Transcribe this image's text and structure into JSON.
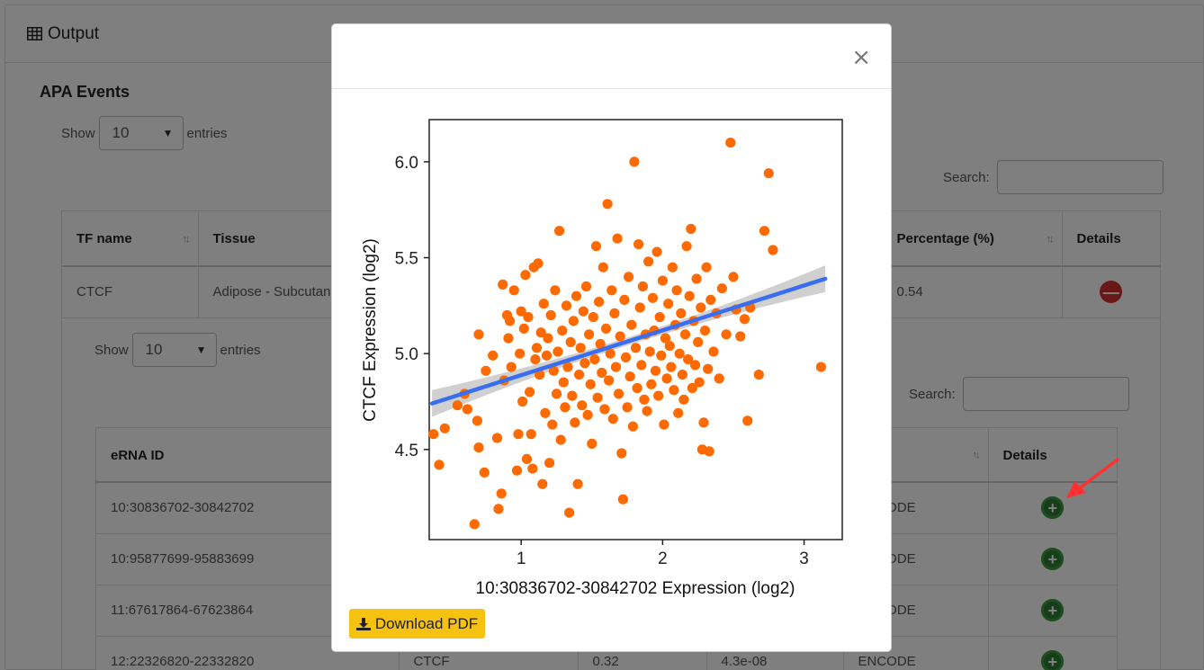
{
  "panel": {
    "title": "Output",
    "icon": "table-icon"
  },
  "apa": {
    "title": "APA Events",
    "show_label": "Show",
    "entries_value": "10",
    "entries_label": "entries",
    "search_label": "Search:",
    "headers": {
      "tf": "TF name",
      "tissue": "Tissue",
      "pct": "Percentage (%)",
      "details": "Details"
    },
    "row": {
      "tf": "CTCF",
      "tissue": "Adipose - Subcutaneous",
      "pct": "0.54"
    }
  },
  "erna": {
    "show_label": "Show",
    "entries_value": "10",
    "entries_label": "entries",
    "search_label": "Search:",
    "headers": {
      "id": "eRNA ID",
      "details": "Details"
    },
    "rows": [
      {
        "id": "10:30836702-30842702",
        "tf": "",
        "r": "",
        "p": "",
        "source": "ENCODE"
      },
      {
        "id": "10:95877699-95883699",
        "tf": "",
        "r": "",
        "p": "",
        "source": "ENCODE"
      },
      {
        "id": "11:67617864-67623864",
        "tf": "",
        "r": "",
        "p": "",
        "source": "ENCODE"
      },
      {
        "id": "12:22326820-22332820",
        "tf": "CTCF",
        "r": "0.32",
        "p": "4.3e-08",
        "source": "ENCODE"
      }
    ]
  },
  "modal": {
    "close_icon": "close-icon",
    "download_label": "Download PDF",
    "download_icon": "download-icon"
  },
  "chart_data": {
    "type": "scatter",
    "xlabel": "10:30836702-30842702  Expression (log2)",
    "ylabel": "CTCF  Expression (log2)",
    "xlim": [
      0.35,
      3.27
    ],
    "ylim": [
      4.03,
      6.22
    ],
    "xticks": [
      "1",
      "2",
      "3"
    ],
    "yticks": [
      "4.5",
      "5.0",
      "5.5",
      "6.0"
    ],
    "grid": false,
    "point_color": "#ff6a00",
    "fit_line_color": "#3a6ef0",
    "ci_color": "#c8c8c8",
    "fit": {
      "x": [
        0.37,
        3.15
      ],
      "y": [
        4.74,
        5.39
      ],
      "ci_halfwidth_ends": 0.07,
      "ci_halfwidth_mid": 0.02
    },
    "points": [
      [
        0.38,
        4.58
      ],
      [
        0.42,
        4.42
      ],
      [
        0.46,
        4.61
      ],
      [
        0.55,
        4.73
      ],
      [
        0.6,
        4.79
      ],
      [
        0.62,
        4.71
      ],
      [
        0.67,
        4.11
      ],
      [
        0.69,
        4.65
      ],
      [
        0.7,
        4.51
      ],
      [
        0.7,
        5.1
      ],
      [
        0.74,
        4.38
      ],
      [
        0.75,
        4.91
      ],
      [
        0.8,
        4.99
      ],
      [
        0.83,
        4.56
      ],
      [
        0.84,
        4.19
      ],
      [
        0.86,
        4.27
      ],
      [
        0.87,
        5.36
      ],
      [
        0.88,
        4.86
      ],
      [
        0.9,
        5.2
      ],
      [
        0.91,
        5.08
      ],
      [
        0.92,
        5.17
      ],
      [
        0.93,
        4.93
      ],
      [
        0.95,
        5.33
      ],
      [
        0.97,
        4.39
      ],
      [
        0.98,
        4.58
      ],
      [
        0.99,
        5.0
      ],
      [
        1.0,
        5.22
      ],
      [
        1.01,
        4.75
      ],
      [
        1.02,
        5.13
      ],
      [
        1.03,
        5.41
      ],
      [
        1.04,
        4.45
      ],
      [
        1.05,
        5.19
      ],
      [
        1.06,
        4.8
      ],
      [
        1.07,
        4.58
      ],
      [
        1.08,
        4.4
      ],
      [
        1.09,
        5.45
      ],
      [
        1.1,
        4.97
      ],
      [
        1.11,
        5.03
      ],
      [
        1.12,
        5.47
      ],
      [
        1.13,
        4.89
      ],
      [
        1.14,
        5.11
      ],
      [
        1.15,
        4.32
      ],
      [
        1.16,
        5.26
      ],
      [
        1.17,
        4.69
      ],
      [
        1.18,
        4.99
      ],
      [
        1.19,
        5.08
      ],
      [
        1.2,
        4.43
      ],
      [
        1.21,
        5.2
      ],
      [
        1.22,
        4.63
      ],
      [
        1.23,
        4.91
      ],
      [
        1.24,
        5.33
      ],
      [
        1.25,
        4.79
      ],
      [
        1.26,
        5.01
      ],
      [
        1.27,
        5.64
      ],
      [
        1.28,
        4.55
      ],
      [
        1.29,
        5.12
      ],
      [
        1.3,
        4.85
      ],
      [
        1.31,
        4.72
      ],
      [
        1.32,
        5.25
      ],
      [
        1.33,
        4.93
      ],
      [
        1.34,
        4.17
      ],
      [
        1.35,
        5.06
      ],
      [
        1.36,
        4.78
      ],
      [
        1.37,
        5.17
      ],
      [
        1.38,
        4.64
      ],
      [
        1.39,
        5.3
      ],
      [
        1.4,
        4.32
      ],
      [
        1.41,
        4.89
      ],
      [
        1.42,
        5.03
      ],
      [
        1.43,
        4.73
      ],
      [
        1.44,
        5.22
      ],
      [
        1.45,
        4.95
      ],
      [
        1.46,
        5.35
      ],
      [
        1.47,
        4.68
      ],
      [
        1.48,
        5.1
      ],
      [
        1.49,
        4.84
      ],
      [
        1.5,
        4.53
      ],
      [
        1.51,
        5.19
      ],
      [
        1.52,
        4.97
      ],
      [
        1.53,
        5.56
      ],
      [
        1.54,
        4.77
      ],
      [
        1.55,
        5.27
      ],
      [
        1.56,
        5.05
      ],
      [
        1.57,
        4.9
      ],
      [
        1.58,
        5.45
      ],
      [
        1.59,
        4.71
      ],
      [
        1.6,
        5.13
      ],
      [
        1.61,
        5.78
      ],
      [
        1.62,
        4.86
      ],
      [
        1.63,
        5.0
      ],
      [
        1.64,
        5.33
      ],
      [
        1.65,
        4.66
      ],
      [
        1.66,
        5.21
      ],
      [
        1.67,
        4.93
      ],
      [
        1.68,
        5.6
      ],
      [
        1.69,
        4.79
      ],
      [
        1.7,
        5.09
      ],
      [
        1.71,
        4.48
      ],
      [
        1.72,
        4.24
      ],
      [
        1.73,
        5.28
      ],
      [
        1.74,
        4.98
      ],
      [
        1.75,
        4.72
      ],
      [
        1.76,
        5.4
      ],
      [
        1.77,
        4.88
      ],
      [
        1.78,
        5.15
      ],
      [
        1.79,
        4.62
      ],
      [
        1.8,
        6.0
      ],
      [
        1.81,
        5.03
      ],
      [
        1.82,
        4.82
      ],
      [
        1.83,
        5.57
      ],
      [
        1.84,
        5.24
      ],
      [
        1.85,
        4.94
      ],
      [
        1.86,
        5.35
      ],
      [
        1.87,
        4.76
      ],
      [
        1.88,
        5.1
      ],
      [
        1.89,
        4.7
      ],
      [
        1.9,
        5.48
      ],
      [
        1.91,
        5.01
      ],
      [
        1.92,
        4.84
      ],
      [
        1.93,
        5.29
      ],
      [
        1.94,
        5.12
      ],
      [
        1.95,
        4.91
      ],
      [
        1.96,
        5.53
      ],
      [
        1.97,
        4.78
      ],
      [
        1.98,
        5.19
      ],
      [
        1.99,
        4.99
      ],
      [
        2.0,
        5.38
      ],
      [
        2.01,
        4.63
      ],
      [
        2.02,
        5.08
      ],
      [
        2.03,
        4.87
      ],
      [
        2.04,
        5.26
      ],
      [
        2.05,
        5.04
      ],
      [
        2.06,
        4.93
      ],
      [
        2.07,
        5.45
      ],
      [
        2.08,
        4.81
      ],
      [
        2.09,
        5.15
      ],
      [
        2.1,
        5.33
      ],
      [
        2.11,
        4.69
      ],
      [
        2.12,
        5.0
      ],
      [
        2.13,
        5.21
      ],
      [
        2.14,
        4.89
      ],
      [
        2.15,
        4.76
      ],
      [
        2.16,
        5.1
      ],
      [
        2.17,
        5.56
      ],
      [
        2.18,
        4.97
      ],
      [
        2.19,
        5.3
      ],
      [
        2.2,
        5.65
      ],
      [
        2.21,
        4.82
      ],
      [
        2.22,
        5.17
      ],
      [
        2.23,
        4.94
      ],
      [
        2.24,
        5.39
      ],
      [
        2.25,
        5.06
      ],
      [
        2.26,
        4.85
      ],
      [
        2.27,
        5.24
      ],
      [
        2.28,
        4.5
      ],
      [
        2.29,
        4.64
      ],
      [
        2.3,
        5.12
      ],
      [
        2.31,
        5.45
      ],
      [
        2.32,
        4.92
      ],
      [
        2.33,
        4.49
      ],
      [
        2.34,
        5.28
      ],
      [
        2.36,
        5.01
      ],
      [
        2.38,
        5.21
      ],
      [
        2.4,
        4.87
      ],
      [
        2.42,
        5.34
      ],
      [
        2.45,
        5.1
      ],
      [
        2.48,
        6.1
      ],
      [
        2.5,
        5.4
      ],
      [
        2.52,
        5.23
      ],
      [
        2.55,
        5.09
      ],
      [
        2.58,
        5.18
      ],
      [
        2.6,
        4.65
      ],
      [
        2.62,
        5.24
      ],
      [
        2.68,
        4.89
      ],
      [
        2.72,
        5.64
      ],
      [
        2.75,
        5.94
      ],
      [
        2.78,
        5.54
      ],
      [
        3.12,
        4.93
      ]
    ]
  }
}
